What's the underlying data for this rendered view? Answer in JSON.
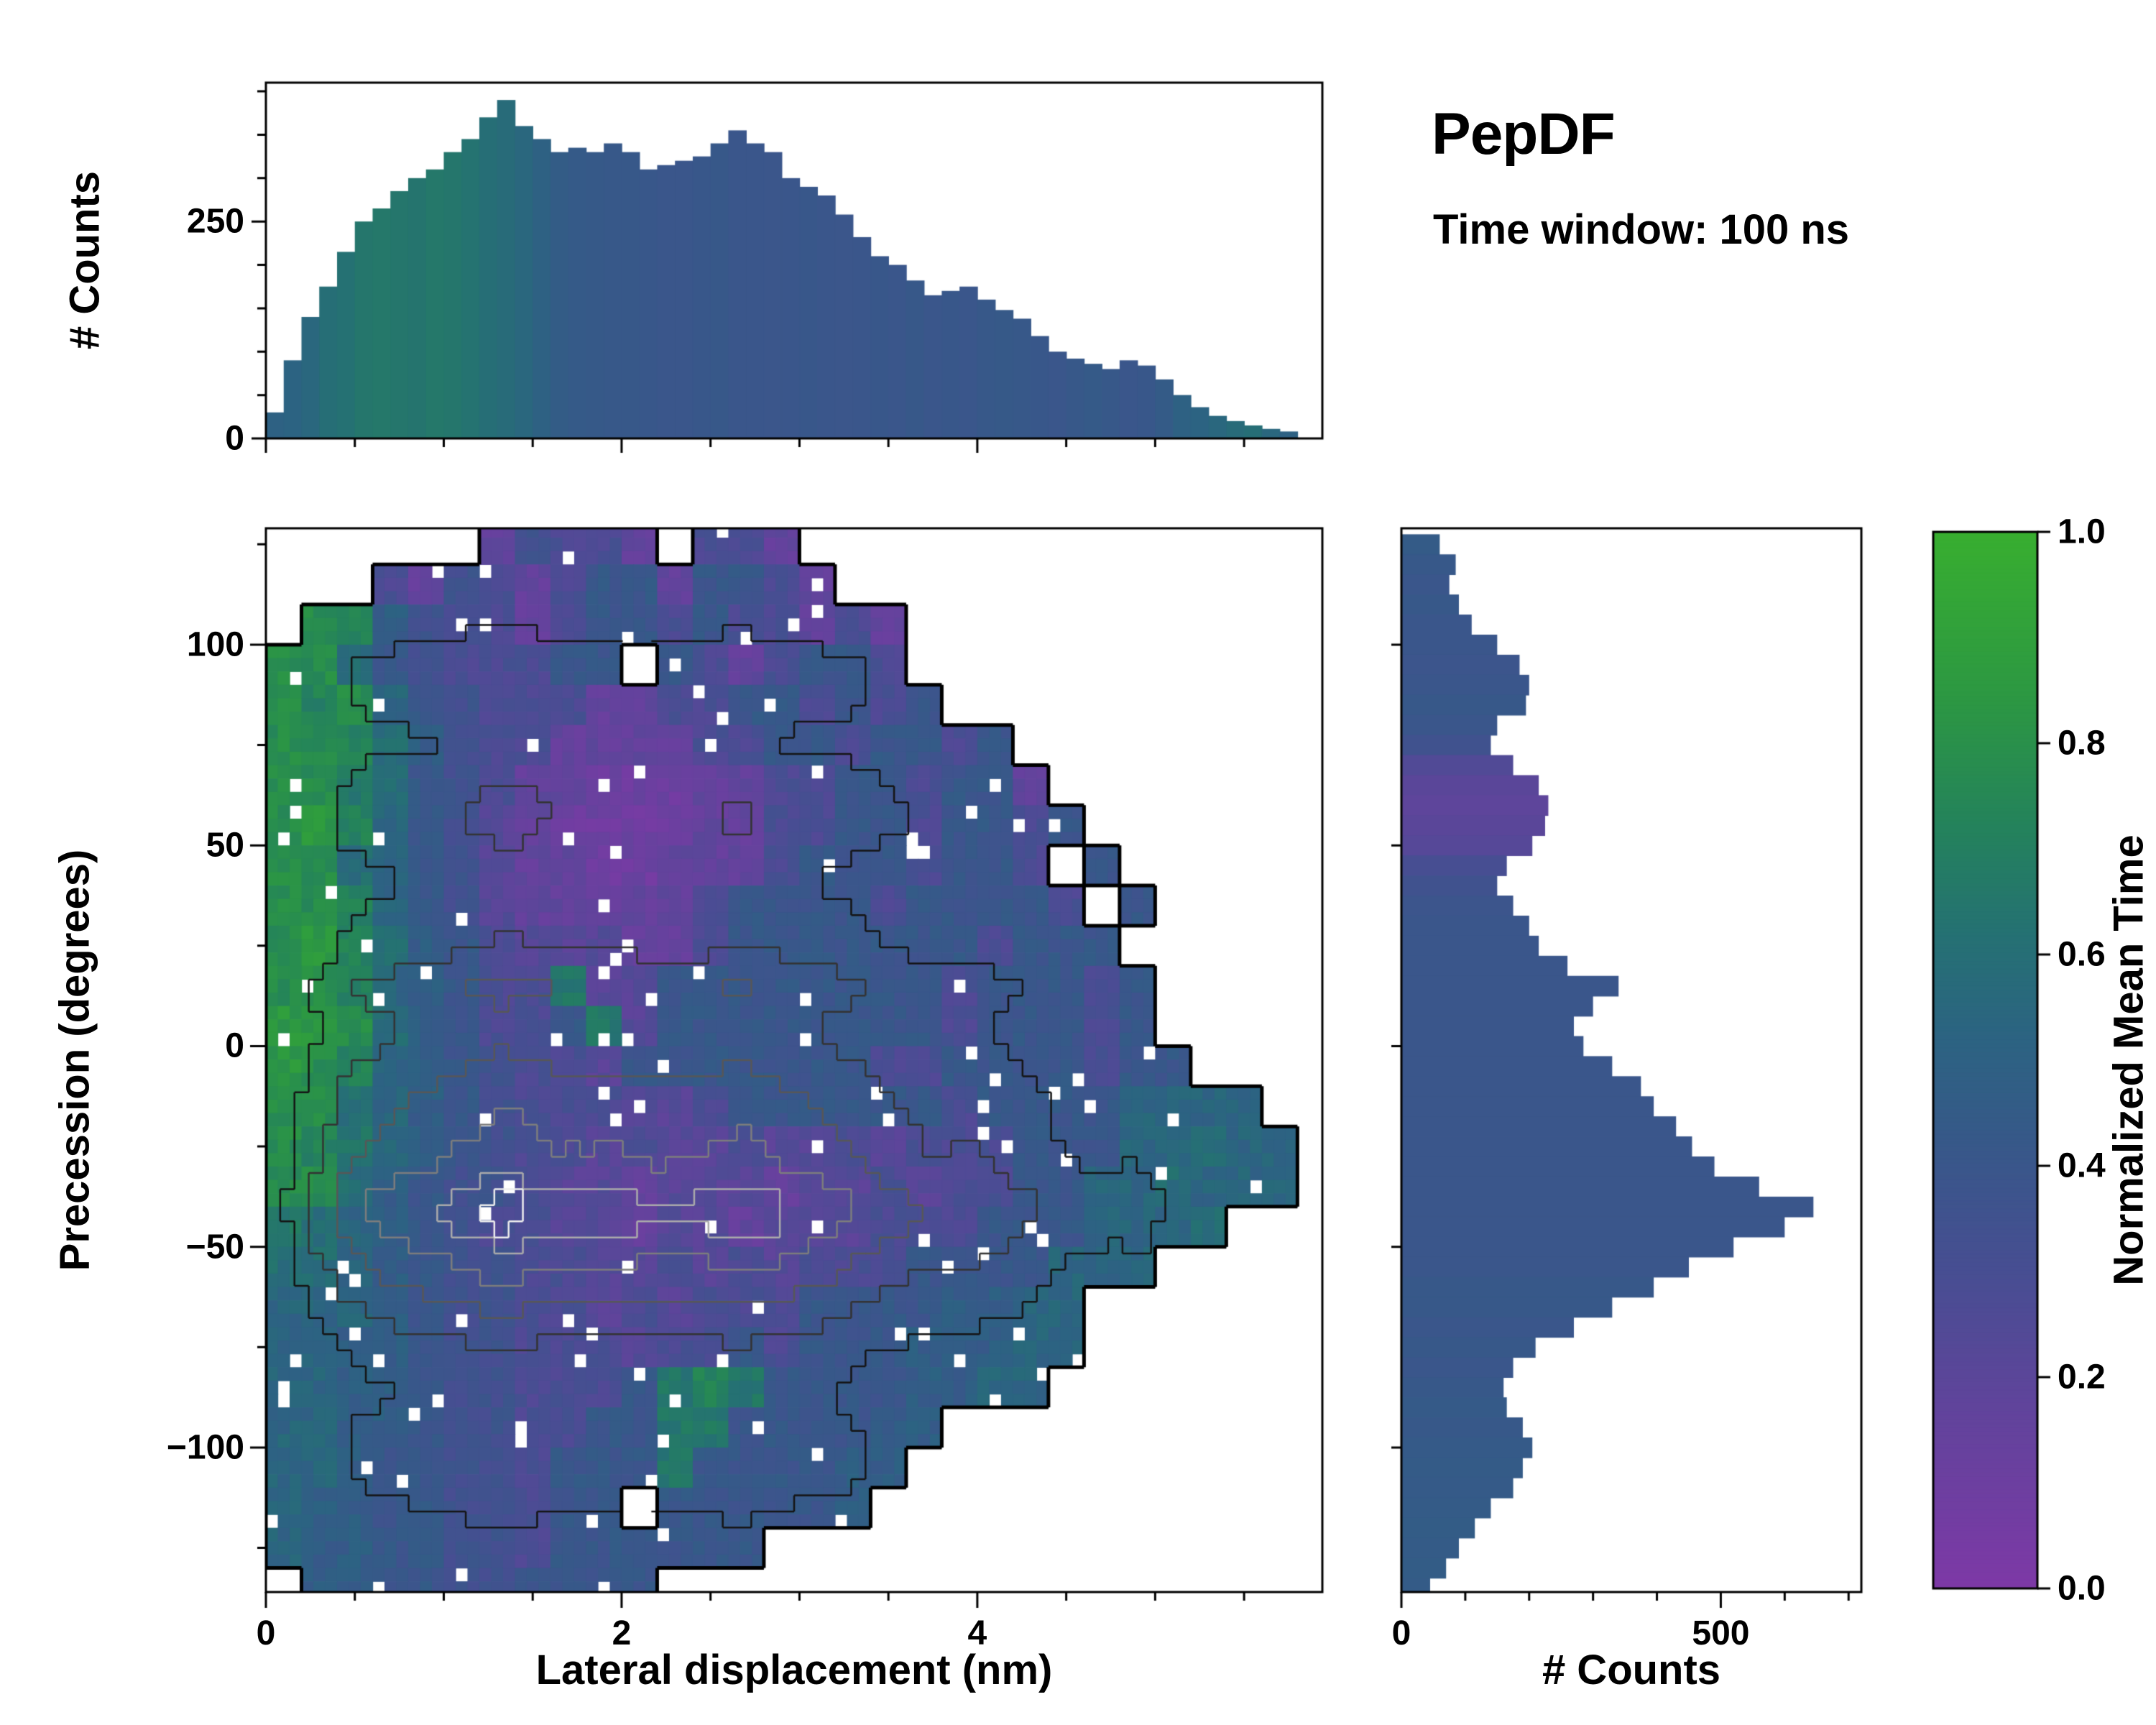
{
  "title": {
    "text": "PepDF",
    "subtitle": "Time window: 100 ns"
  },
  "labels": {
    "top_ylabel": "# Counts",
    "main_xlabel": "Lateral displacement (nm)",
    "main_ylabel": "Precession (degrees)",
    "side_xlabel": "# Counts",
    "colorbar_label": "Normalized Mean Time"
  },
  "colors": {
    "background": "#ffffff",
    "axis": "#000000"
  },
  "colormap": {
    "stops": [
      {
        "t": 0.0,
        "c": "#7d39a6"
      },
      {
        "t": 0.16,
        "c": "#62439c"
      },
      {
        "t": 0.3,
        "c": "#474e92"
      },
      {
        "t": 0.42,
        "c": "#375889"
      },
      {
        "t": 0.52,
        "c": "#2c6382"
      },
      {
        "t": 0.62,
        "c": "#257173"
      },
      {
        "t": 0.72,
        "c": "#24825c"
      },
      {
        "t": 0.84,
        "c": "#2c9743"
      },
      {
        "t": 1.0,
        "c": "#38ae30"
      }
    ]
  },
  "chart_data": [
    {
      "type": "bar",
      "panel": "top-marginal-histogram",
      "ylabel": "# Counts",
      "xlim": [
        0,
        5.94
      ],
      "ylim": [
        0,
        410
      ],
      "x_start": 0.05,
      "x_step": 0.1,
      "yticks": [
        {
          "v": 0,
          "label": "0"
        },
        {
          "v": 250,
          "label": "250"
        }
      ],
      "values": [
        30,
        90,
        140,
        175,
        215,
        250,
        265,
        285,
        300,
        310,
        330,
        345,
        370,
        390,
        360,
        345,
        330,
        335,
        330,
        340,
        330,
        310,
        315,
        320,
        325,
        340,
        355,
        340,
        330,
        300,
        290,
        280,
        258,
        232,
        210,
        200,
        182,
        165,
        170,
        175,
        160,
        148,
        138,
        118,
        100,
        92,
        86,
        80,
        90,
        84,
        68,
        50,
        36,
        26,
        20,
        15,
        11,
        8
      ],
      "color_values": [
        0.5,
        0.52,
        0.55,
        0.6,
        0.62,
        0.65,
        0.66,
        0.65,
        0.64,
        0.66,
        0.65,
        0.63,
        0.6,
        0.58,
        0.55,
        0.5,
        0.46,
        0.44,
        0.43,
        0.42,
        0.42,
        0.41,
        0.4,
        0.4,
        0.41,
        0.42,
        0.4,
        0.4,
        0.39,
        0.4,
        0.41,
        0.4,
        0.39,
        0.4,
        0.41,
        0.4,
        0.42,
        0.4,
        0.41,
        0.4,
        0.42,
        0.43,
        0.42,
        0.41,
        0.4,
        0.42,
        0.44,
        0.42,
        0.4,
        0.41,
        0.45,
        0.5,
        0.52,
        0.55,
        0.58,
        0.6,
        0.55,
        0.5
      ]
    },
    {
      "type": "heatmap",
      "panel": "main-joint-plot",
      "xlabel": "Lateral displacement (nm)",
      "ylabel": "Precession (degrees)",
      "colorbar_label": "Normalized Mean Time",
      "xlim": [
        0,
        5.94
      ],
      "ylim": [
        -136,
        129
      ],
      "xticks": [
        {
          "v": 0,
          "label": "0"
        },
        {
          "v": 2,
          "label": "2"
        },
        {
          "v": 4,
          "label": "4"
        }
      ],
      "yticks": [
        {
          "v": 100,
          "label": "100"
        },
        {
          "v": 50,
          "label": "50"
        },
        {
          "v": 0,
          "label": "0"
        },
        {
          "v": -50,
          "label": "−50"
        },
        {
          "v": -100,
          "label": "−100"
        }
      ],
      "grid": {
        "x0": 0,
        "dx": 0.2,
        "cols": 29,
        "y_top": 130,
        "dy": 10,
        "rows": 27,
        "encoding": "hex digit d -> normalized mean time (d+0.5)/16 ; '.' = no data",
        "rows_encoded": [
          "......25442.442..............",
          "...4254246626642.............",
          ".cb754424664644242...........",
          "cc96544466.6424664...........",
          "cbc8654442244664646..........",
          "ccb975442222446646646........",
          "cca9654221112244664662.......",
          "cdb86532111122446646646......",
          "cc98653221122246664664.6.....",
          "ccb86532222246666466664.6....",
          "cdb976433322466666664666.....",
          "ccb87644a3366666666466646....",
          "ddc976446a366666666466646....",
          "dcb87654436666666446666466...",
          "cc98765444334666666466668888.",
          "cba87654434334334344466688988",
          "cc976554332333233434466889888",
          "a98765443323323334446668889..",
          "9987655443343434446666888....",
          "88876554434344466667788......",
          "88776554443446466677788......",
          "88776554446aba66667788.......",
          "88776554466aa666677..........",
          "88766554666a666677...........",
          "8776655466.666667............",
          "87766554666666...............",
          ".7766556666.................."
        ]
      },
      "contours": {
        "comment": "density contour levels as fraction of max counts density; outermost drawn black and thick",
        "levels": [
          0.18,
          0.32,
          0.47,
          0.63,
          0.8,
          0.93
        ],
        "colors": [
          "#141414",
          "#333333",
          "#575757",
          "#7d7d7d",
          "#ababab",
          "#ededed"
        ]
      }
    },
    {
      "type": "bar_horizontal",
      "panel": "side-marginal-histogram",
      "xlabel": "# Counts",
      "xlim": [
        0,
        720
      ],
      "y_start": 125,
      "y_step": -5,
      "xticks": [
        {
          "v": 0,
          "label": "0"
        },
        {
          "v": 500,
          "label": "500"
        }
      ],
      "values": [
        60,
        85,
        75,
        90,
        110,
        150,
        185,
        200,
        195,
        150,
        140,
        175,
        215,
        230,
        225,
        205,
        165,
        150,
        175,
        200,
        215,
        260,
        340,
        300,
        270,
        285,
        330,
        375,
        395,
        430,
        455,
        490,
        560,
        645,
        600,
        520,
        450,
        395,
        330,
        270,
        210,
        175,
        160,
        165,
        190,
        205,
        190,
        175,
        140,
        115,
        90,
        70,
        45
      ],
      "color_values": [
        0.45,
        0.42,
        0.4,
        0.42,
        0.4,
        0.4,
        0.38,
        0.4,
        0.42,
        0.4,
        0.35,
        0.25,
        0.2,
        0.18,
        0.2,
        0.22,
        0.3,
        0.35,
        0.38,
        0.4,
        0.4,
        0.4,
        0.4,
        0.4,
        0.4,
        0.4,
        0.4,
        0.4,
        0.4,
        0.4,
        0.4,
        0.4,
        0.4,
        0.4,
        0.4,
        0.4,
        0.4,
        0.42,
        0.42,
        0.4,
        0.42,
        0.4,
        0.42,
        0.44,
        0.42,
        0.44,
        0.45,
        0.44,
        0.45,
        0.46,
        0.45,
        0.46,
        0.45
      ]
    },
    {
      "type": "colorbar",
      "label": "Normalized Mean Time",
      "range": [
        0,
        1
      ],
      "ticks": [
        {
          "v": 0.0,
          "label": "0.0"
        },
        {
          "v": 0.2,
          "label": "0.2"
        },
        {
          "v": 0.4,
          "label": "0.4"
        },
        {
          "v": 0.6,
          "label": "0.6"
        },
        {
          "v": 0.8,
          "label": "0.8"
        },
        {
          "v": 1.0,
          "label": "1.0"
        }
      ]
    }
  ]
}
